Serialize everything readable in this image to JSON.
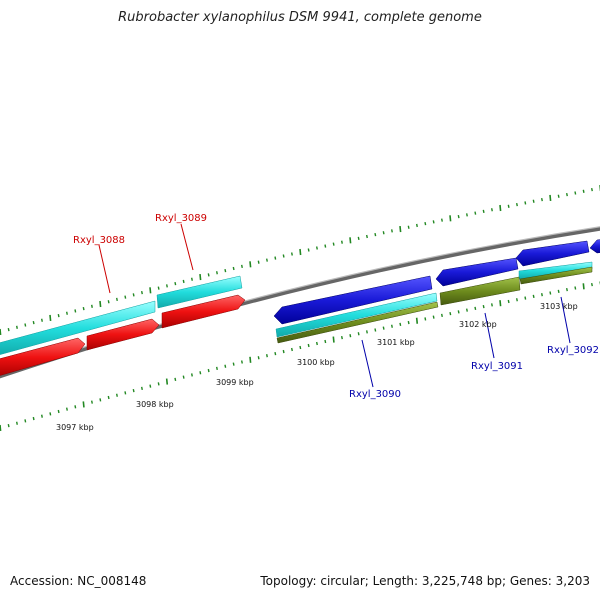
{
  "title": "Rubrobacter xylanophilus DSM 9941, complete genome",
  "footer": {
    "accession": "Accession: NC_008148",
    "topology": "Topology: circular; Length: 3,225,748 bp; Genes: 3,203"
  },
  "axis_unit": "kbp",
  "scale_ticks": [
    {
      "label": "3097 kbp"
    },
    {
      "label": "3098 kbp"
    },
    {
      "label": "3099 kbp"
    },
    {
      "label": "3100 kbp"
    },
    {
      "label": "3101 kbp"
    },
    {
      "label": "3102 kbp"
    },
    {
      "label": "3103 kbp"
    }
  ],
  "genes": [
    {
      "name": "Rxyl_3088",
      "color": "#cc0000",
      "strand": "forward"
    },
    {
      "name": "Rxyl_3089",
      "color": "#cc0000",
      "strand": "forward"
    },
    {
      "name": "Rxyl_3090",
      "color": "#0000aa",
      "strand": "reverse"
    },
    {
      "name": "Rxyl_3091",
      "color": "#0000aa",
      "strand": "reverse"
    },
    {
      "name": "Rxyl_3092",
      "color": "#0000aa",
      "strand": "reverse"
    }
  ],
  "colors": {
    "forward_cds": "#ee1111",
    "forward_gene": "#22dddd",
    "reverse_cds": "#1a1ad8",
    "reverse_gene": "#22cccc",
    "olive_feature": "#6e8c1e",
    "backbone": "#888888",
    "tick_marks": "#228822"
  }
}
